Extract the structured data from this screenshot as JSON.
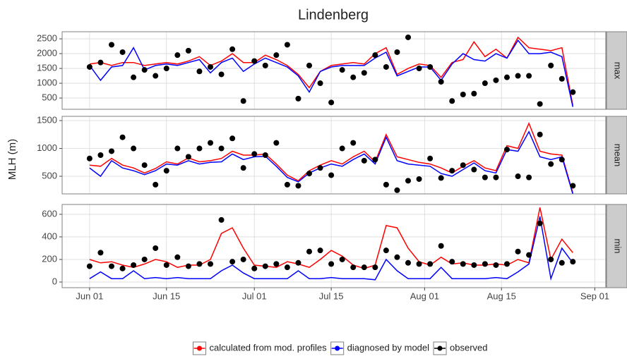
{
  "title": "Lindenberg",
  "y_label": "MLH (m)",
  "chart_data": [
    {
      "type": "line",
      "facet": "max",
      "x": [
        "Jun 01",
        "Jun 03",
        "Jun 05",
        "Jun 07",
        "Jun 09",
        "Jun 11",
        "Jun 13",
        "Jun 15",
        "Jun 17",
        "Jun 19",
        "Jun 21",
        "Jun 23",
        "Jun 25",
        "Jun 27",
        "Jun 29",
        "Jul 01",
        "Jul 03",
        "Jul 05",
        "Jul 07",
        "Jul 09",
        "Jul 11",
        "Jul 13",
        "Jul 15",
        "Jul 17",
        "Jul 19",
        "Jul 21",
        "Jul 23",
        "Jul 25",
        "Jul 27",
        "Jul 29",
        "Jul 31",
        "Aug 02",
        "Aug 04",
        "Aug 06",
        "Aug 08",
        "Aug 10",
        "Aug 12",
        "Aug 14",
        "Aug 16",
        "Aug 18",
        "Aug 20",
        "Aug 22",
        "Aug 24",
        "Aug 26",
        "Aug 28"
      ],
      "xlim": [
        "May 27",
        "Sep 03"
      ],
      "xticks": [
        "Jun 01",
        "Jun 15",
        "Jul 01",
        "Jul 15",
        "Aug 01",
        "Aug 15",
        "Sep 01"
      ],
      "ylim": [
        120,
        2740
      ],
      "yticks": [
        500,
        1000,
        1500,
        2000,
        2500
      ],
      "grid": true,
      "series": [
        {
          "name": "calculated from mod. profiles",
          "color": "#ff0000",
          "mode": "lines",
          "values": [
            1650,
            1700,
            1600,
            1700,
            1700,
            1600,
            1650,
            1700,
            1650,
            1750,
            1900,
            1600,
            1750,
            2000,
            1700,
            1700,
            1950,
            1800,
            1600,
            1300,
            850,
            1400,
            1600,
            1650,
            1700,
            1650,
            2000,
            2200,
            1300,
            1500,
            1650,
            1600,
            1200,
            1700,
            1800,
            2400,
            1900,
            2150,
            1850,
            2550,
            2200,
            2150,
            2100,
            2200,
            250
          ]
        },
        {
          "name": "diagnosed by model",
          "color": "#0000ff",
          "mode": "lines",
          "values": [
            1600,
            1100,
            1550,
            1600,
            2200,
            1450,
            1600,
            1650,
            1600,
            1700,
            1800,
            1350,
            1700,
            1850,
            1400,
            1650,
            1850,
            1700,
            1550,
            1250,
            700,
            1400,
            1550,
            1600,
            1600,
            1600,
            1850,
            2050,
            1250,
            1400,
            1550,
            1550,
            1100,
            1650,
            2000,
            1800,
            1750,
            2000,
            1850,
            2450,
            2000,
            2000,
            2050,
            1900,
            200
          ]
        },
        {
          "name": "observed",
          "color": "#000000",
          "mode": "markers",
          "values": [
            1550,
            1700,
            2300,
            2050,
            1200,
            1450,
            1250,
            1500,
            1950,
            2100,
            1400,
            1550,
            1300,
            2150,
            400,
            1750,
            1600,
            1950,
            2300,
            480,
            1600,
            1000,
            350,
            1450,
            1200,
            1350,
            1950,
            1550,
            2050,
            2550,
            1500,
            1550,
            1050,
            400,
            620,
            650,
            1000,
            1100,
            1200,
            1250,
            1250,
            300,
            1600,
            1150,
            700
          ]
        }
      ]
    },
    {
      "type": "line",
      "facet": "mean",
      "x": [
        "Jun 01",
        "Jun 03",
        "Jun 05",
        "Jun 07",
        "Jun 09",
        "Jun 11",
        "Jun 13",
        "Jun 15",
        "Jun 17",
        "Jun 19",
        "Jun 21",
        "Jun 23",
        "Jun 25",
        "Jun 27",
        "Jun 29",
        "Jul 01",
        "Jul 03",
        "Jul 05",
        "Jul 07",
        "Jul 09",
        "Jul 11",
        "Jul 13",
        "Jul 15",
        "Jul 17",
        "Jul 19",
        "Jul 21",
        "Jul 23",
        "Jul 25",
        "Jul 27",
        "Jul 29",
        "Jul 31",
        "Aug 02",
        "Aug 04",
        "Aug 06",
        "Aug 08",
        "Aug 10",
        "Aug 12",
        "Aug 14",
        "Aug 16",
        "Aug 18",
        "Aug 20",
        "Aug 22",
        "Aug 24",
        "Aug 26",
        "Aug 28"
      ],
      "xlim": [
        "May 27",
        "Sep 03"
      ],
      "xticks": [
        "Jun 01",
        "Jun 15",
        "Jul 01",
        "Jul 15",
        "Aug 01",
        "Aug 15",
        "Sep 01"
      ],
      "ylim": [
        184,
        1576
      ],
      "yticks": [
        500,
        1000,
        1500
      ],
      "grid": true,
      "series": [
        {
          "color": "#ff0000",
          "mode": "lines",
          "values": [
            700,
            680,
            820,
            700,
            650,
            560,
            640,
            760,
            720,
            830,
            760,
            780,
            820,
            950,
            880,
            880,
            900,
            720,
            520,
            420,
            600,
            700,
            780,
            720,
            850,
            950,
            760,
            1250,
            850,
            800,
            750,
            720,
            650,
            560,
            680,
            780,
            650,
            600,
            1050,
            1000,
            1450,
            950,
            900,
            880,
            200
          ]
        },
        {
          "color": "#0000ff",
          "mode": "lines",
          "values": [
            650,
            500,
            780,
            650,
            600,
            530,
            600,
            720,
            700,
            780,
            720,
            750,
            760,
            900,
            800,
            850,
            860,
            680,
            480,
            400,
            560,
            650,
            720,
            680,
            800,
            900,
            720,
            1200,
            780,
            720,
            700,
            680,
            550,
            500,
            620,
            740,
            600,
            560,
            980,
            950,
            1300,
            850,
            800,
            850,
            180
          ]
        },
        {
          "color": "#000000",
          "mode": "markers",
          "values": [
            820,
            880,
            950,
            1200,
            1000,
            700,
            350,
            600,
            1000,
            850,
            1000,
            1100,
            1000,
            1180,
            650,
            900,
            880,
            1100,
            350,
            330,
            550,
            650,
            520,
            1000,
            1100,
            780,
            800,
            350,
            250,
            420,
            450,
            820,
            470,
            600,
            700,
            620,
            480,
            480,
            980,
            500,
            480,
            1250,
            720,
            800,
            330
          ]
        }
      ]
    },
    {
      "type": "line",
      "facet": "min",
      "x": [
        "Jun 01",
        "Jun 03",
        "Jun 05",
        "Jun 07",
        "Jun 09",
        "Jun 11",
        "Jun 13",
        "Jun 15",
        "Jun 17",
        "Jun 19",
        "Jun 21",
        "Jun 23",
        "Jun 25",
        "Jun 27",
        "Jun 29",
        "Jul 01",
        "Jul 03",
        "Jul 05",
        "Jul 07",
        "Jul 09",
        "Jul 11",
        "Jul 13",
        "Jul 15",
        "Jul 17",
        "Jul 19",
        "Jul 21",
        "Jul 23",
        "Jul 25",
        "Jul 27",
        "Jul 29",
        "Jul 31",
        "Aug 02",
        "Aug 04",
        "Aug 06",
        "Aug 08",
        "Aug 10",
        "Aug 12",
        "Aug 14",
        "Aug 16",
        "Aug 18",
        "Aug 20",
        "Aug 22",
        "Aug 24",
        "Aug 26",
        "Aug 28"
      ],
      "xlim": [
        "May 27",
        "Sep 03"
      ],
      "xticks": [
        "Jun 01",
        "Jun 15",
        "Jul 01",
        "Jul 15",
        "Aug 01",
        "Aug 15",
        "Sep 01"
      ],
      "ylim": [
        -50,
        687
      ],
      "yticks": [
        0,
        200,
        400,
        600
      ],
      "grid": true,
      "series": [
        {
          "color": "#ff0000",
          "mode": "lines",
          "values": [
            200,
            170,
            180,
            150,
            130,
            160,
            200,
            180,
            130,
            150,
            150,
            200,
            430,
            480,
            300,
            150,
            140,
            130,
            180,
            160,
            130,
            200,
            280,
            230,
            150,
            120,
            150,
            500,
            480,
            300,
            180,
            150,
            220,
            160,
            170,
            150,
            150,
            160,
            150,
            200,
            170,
            660,
            200,
            380,
            260
          ]
        },
        {
          "color": "#0000ff",
          "mode": "lines",
          "values": [
            30,
            90,
            30,
            30,
            100,
            30,
            40,
            30,
            40,
            30,
            30,
            30,
            100,
            150,
            80,
            30,
            30,
            30,
            30,
            100,
            30,
            30,
            40,
            30,
            30,
            30,
            20,
            200,
            100,
            30,
            30,
            30,
            130,
            30,
            30,
            30,
            30,
            40,
            30,
            90,
            160,
            580,
            30,
            300,
            170
          ]
        },
        {
          "color": "#000000",
          "mode": "markers",
          "values": [
            140,
            260,
            140,
            120,
            150,
            200,
            300,
            150,
            220,
            140,
            160,
            160,
            550,
            180,
            200,
            120,
            140,
            160,
            130,
            170,
            270,
            280,
            160,
            200,
            130,
            130,
            130,
            280,
            220,
            170,
            160,
            160,
            320,
            180,
            160,
            150,
            160,
            150,
            160,
            270,
            240,
            520,
            200,
            170,
            180
          ]
        }
      ]
    }
  ]
}
